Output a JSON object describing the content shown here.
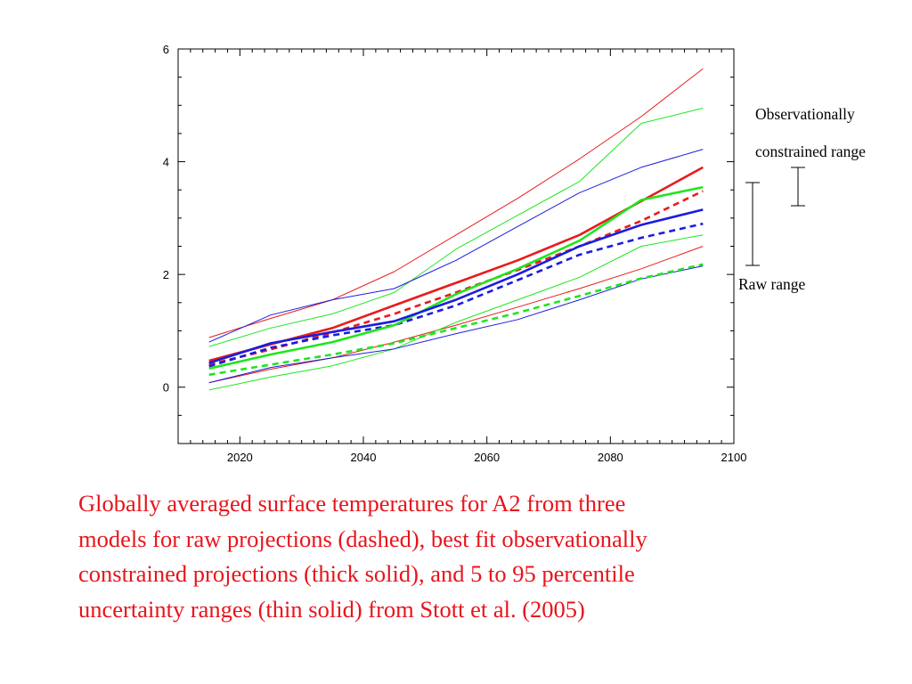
{
  "chart_data": {
    "type": "line",
    "title": "",
    "xlabel": "",
    "ylabel": "",
    "xlim": [
      2010,
      2100
    ],
    "ylim": [
      -1,
      6
    ],
    "xticks": [
      2020,
      2040,
      2060,
      2080,
      2100
    ],
    "yticks": [
      0,
      2,
      4,
      6
    ],
    "x": [
      2015,
      2025,
      2035,
      2045,
      2055,
      2065,
      2075,
      2085,
      2095
    ],
    "colors": {
      "red": "#e81c1c",
      "green": "#1ee61e",
      "blue": "#1c1ce0"
    },
    "series": [
      {
        "group": "red",
        "style": "thin",
        "values": [
          0.88,
          1.22,
          1.55,
          2.05,
          2.7,
          3.35,
          4.05,
          4.8,
          5.65
        ]
      },
      {
        "group": "red",
        "style": "thin",
        "values": [
          0.08,
          0.32,
          0.52,
          0.8,
          1.1,
          1.42,
          1.75,
          2.1,
          2.5
        ]
      },
      {
        "group": "red",
        "style": "thick",
        "values": [
          0.47,
          0.76,
          1.05,
          1.45,
          1.85,
          2.25,
          2.7,
          3.3,
          3.9
        ]
      },
      {
        "group": "red",
        "style": "dashed",
        "values": [
          0.4,
          0.67,
          0.97,
          1.3,
          1.68,
          2.08,
          2.5,
          2.95,
          3.48
        ]
      },
      {
        "group": "green",
        "style": "thin",
        "values": [
          0.72,
          1.05,
          1.3,
          1.68,
          2.45,
          3.05,
          3.65,
          4.68,
          4.95
        ]
      },
      {
        "group": "green",
        "style": "thin",
        "values": [
          -0.05,
          0.18,
          0.38,
          0.68,
          1.15,
          1.55,
          1.95,
          2.5,
          2.7
        ]
      },
      {
        "group": "green",
        "style": "thick",
        "values": [
          0.33,
          0.58,
          0.8,
          1.1,
          1.65,
          2.1,
          2.6,
          3.32,
          3.55
        ]
      },
      {
        "group": "green",
        "style": "dashed",
        "values": [
          0.22,
          0.4,
          0.58,
          0.78,
          1.05,
          1.32,
          1.62,
          1.93,
          2.18
        ]
      },
      {
        "group": "blue",
        "style": "thin",
        "values": [
          0.8,
          1.28,
          1.55,
          1.75,
          2.25,
          2.85,
          3.45,
          3.9,
          4.22
        ]
      },
      {
        "group": "blue",
        "style": "thin",
        "values": [
          0.08,
          0.35,
          0.52,
          0.68,
          0.95,
          1.2,
          1.55,
          1.92,
          2.15
        ]
      },
      {
        "group": "blue",
        "style": "thick",
        "values": [
          0.43,
          0.78,
          0.98,
          1.17,
          1.55,
          2.0,
          2.5,
          2.88,
          3.15
        ]
      },
      {
        "group": "blue",
        "style": "dashed",
        "values": [
          0.37,
          0.7,
          0.92,
          1.1,
          1.45,
          1.9,
          2.35,
          2.65,
          2.9
        ]
      }
    ],
    "annotations": {
      "observational_line1": "Observationally",
      "observational_line2": "constrained range",
      "raw_range": "Raw range"
    }
  },
  "caption": "Globally averaged surface temperatures for A2 from three\nmodels for raw projections (dashed), best fit observationally\nconstrained projections (thick solid), and 5 to 95 percentile\nuncertainty ranges (thin solid)  from Stott et al. (2005)"
}
